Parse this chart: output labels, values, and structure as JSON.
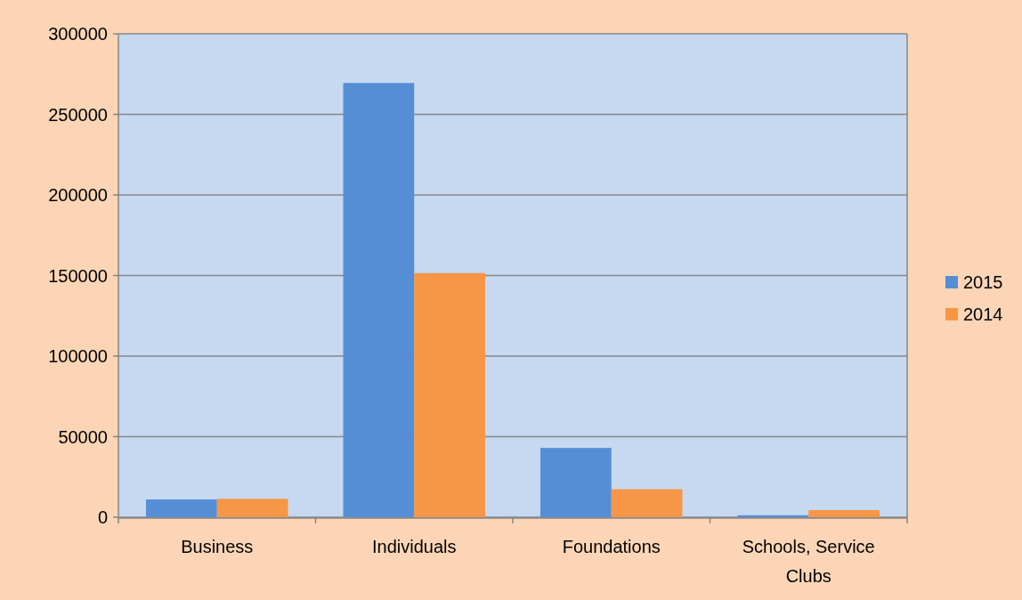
{
  "chart_data": {
    "type": "bar",
    "categories": [
      "Business",
      "Individuals",
      "Foundations",
      "Schools, Service Clubs"
    ],
    "series": [
      {
        "name": "2015",
        "color": "#558ed5",
        "values": [
          11000,
          269500,
          43000,
          1200
        ]
      },
      {
        "name": "2014",
        "color": "#f79646",
        "values": [
          11400,
          151500,
          17400,
          4400
        ]
      }
    ],
    "ylim": [
      0,
      300000
    ],
    "yticks": [
      0,
      50000,
      100000,
      150000,
      200000,
      250000,
      300000
    ],
    "grid": "y",
    "legend": "right"
  }
}
